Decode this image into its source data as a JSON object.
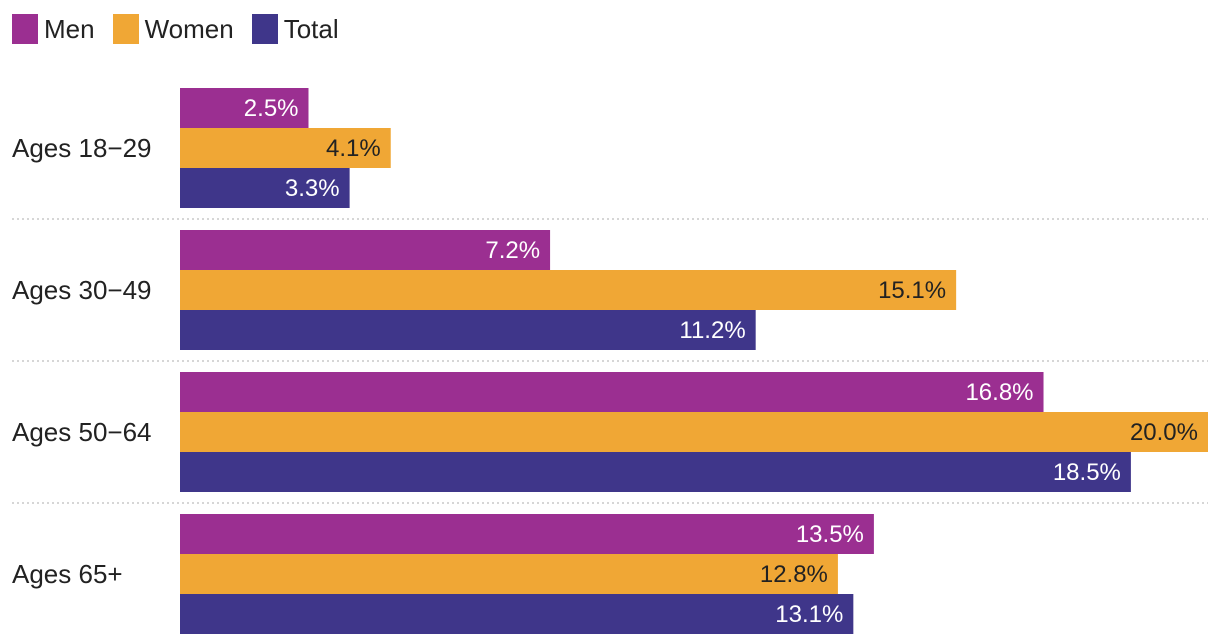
{
  "chart_data": {
    "type": "bar",
    "orientation": "horizontal",
    "categories": [
      "Ages 18−29",
      "Ages 30−49",
      "Ages 50−64",
      "Ages 65+"
    ],
    "series": [
      {
        "name": "Men",
        "color": "#9b2f91",
        "values": [
          2.5,
          7.2,
          16.8,
          13.5
        ],
        "labels": [
          "2.5%",
          "7.2%",
          "16.8%",
          "13.5%"
        ]
      },
      {
        "name": "Women",
        "color": "#f0a735",
        "values": [
          4.1,
          15.1,
          20.0,
          12.8
        ],
        "labels": [
          "4.1%",
          "15.1%",
          "20.0%",
          "12.8%"
        ]
      },
      {
        "name": "Total",
        "color": "#3f368a",
        "values": [
          3.3,
          11.2,
          18.5,
          13.1
        ],
        "labels": [
          "3.3%",
          "11.2%",
          "18.5%",
          "13.1%"
        ]
      }
    ],
    "xlim": [
      0,
      20
    ],
    "legend_position": "top-left",
    "value_label_colors": {
      "Men": "#ffffff",
      "Women": "#222222",
      "Total": "#ffffff"
    },
    "grid": false
  }
}
